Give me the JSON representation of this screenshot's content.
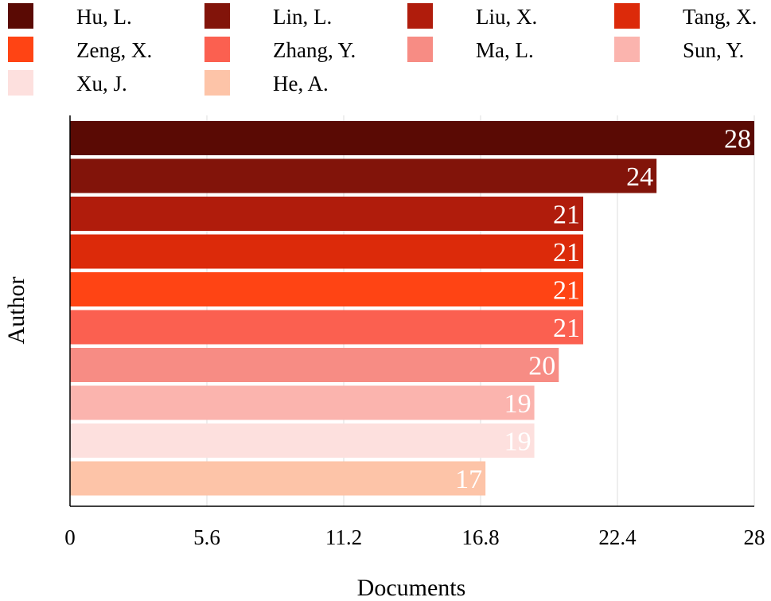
{
  "chart_data": {
    "type": "bar",
    "orientation": "horizontal",
    "title": "",
    "xlabel": "Documents",
    "ylabel": "Author",
    "xlim": [
      0,
      28
    ],
    "xticks": [
      "0",
      "5.6",
      "11.2",
      "16.8",
      "22.4",
      "28"
    ],
    "grid": true,
    "legend_position": "top",
    "categories": [
      "Hu, L.",
      "Lin, L.",
      "Liu, X.",
      "Tang, X.",
      "Zeng, X.",
      "Zhang, Y.",
      "Ma, L.",
      "Sun, Y.",
      "Xu, J.",
      "He, A."
    ],
    "values": [
      28,
      24,
      21,
      21,
      21,
      21,
      20,
      19,
      19,
      17
    ],
    "colors": [
      "#5a0a04",
      "#82140a",
      "#b01c0c",
      "#dc2a0a",
      "#ff4414",
      "#fb6050",
      "#f78c84",
      "#fbb4ae",
      "#fde0de",
      "#fdc4a8"
    ]
  }
}
